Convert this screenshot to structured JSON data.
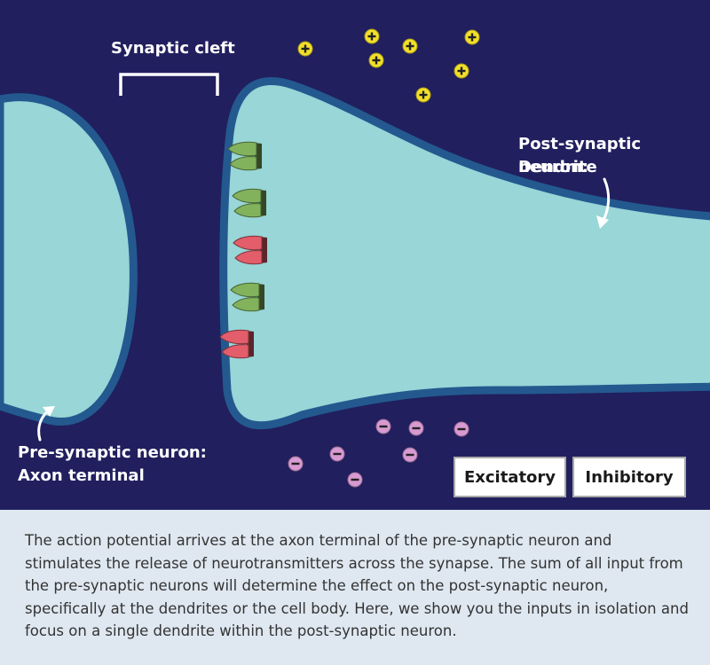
{
  "labels": {
    "synaptic_cleft": "Synaptic cleft",
    "post_line1": "Post-synaptic neuron:",
    "post_line2": "Dendrite",
    "pre_line1": "Pre-synaptic neuron:",
    "pre_line2": "Axon terminal"
  },
  "buttons": {
    "excitatory": "Excitatory",
    "inhibitory": "Inhibitory"
  },
  "caption": "The action potential arrives at the axon terminal of the pre-synaptic neuron and stimulates the release of neurotransmitters across the synapse. The sum of all input from the pre-synaptic neurons will determine the effect on the post-synaptic neuron, specifically at the dendrites or the cell body. Here, we show you the inputs in isolation and focus on a single dendrite within the post-synaptic neuron.",
  "colors": {
    "background": "#211f5e",
    "membrane": "#23598f",
    "cytoplasm": "#98d6d7",
    "excitatory_receptor": "#82b35c",
    "inhibitory_receptor": "#e35d6a",
    "positive_ion": "#f2e02a",
    "negative_ion": "#d89ad1",
    "caption_bg": "#dfe8f1"
  },
  "receptors": [
    "excitatory",
    "excitatory",
    "inhibitory",
    "excitatory",
    "inhibitory"
  ],
  "ions": {
    "positive_symbol": "+",
    "negative_symbol": "−"
  }
}
